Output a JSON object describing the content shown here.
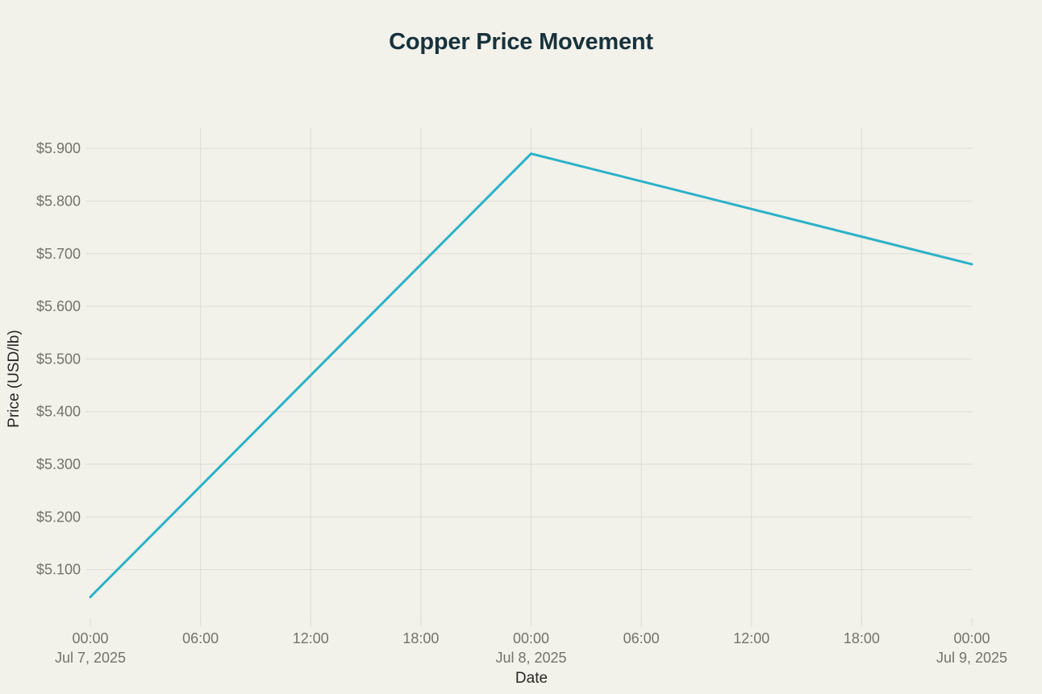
{
  "chart_data": {
    "type": "line",
    "title": "Copper Price Movement",
    "xlabel": "Date",
    "ylabel": "Price (USD/lb)",
    "series": [
      {
        "x_hours": [
          0,
          24,
          48
        ],
        "x_labels": [
          "Jul 7, 2025 00:00",
          "Jul 8, 2025 00:00",
          "Jul 9, 2025 00:00"
        ],
        "values": [
          5.048,
          5.89,
          5.68
        ],
        "color": "#2ab2c8"
      }
    ],
    "x_ticks": [
      {
        "hour": 0,
        "label": "00:00",
        "date": "Jul 7, 2025"
      },
      {
        "hour": 6,
        "label": "06:00"
      },
      {
        "hour": 12,
        "label": "12:00"
      },
      {
        "hour": 18,
        "label": "18:00"
      },
      {
        "hour": 24,
        "label": "00:00",
        "date": "Jul 8, 2025"
      },
      {
        "hour": 30,
        "label": "06:00"
      },
      {
        "hour": 36,
        "label": "12:00"
      },
      {
        "hour": 42,
        "label": "18:00"
      },
      {
        "hour": 48,
        "label": "00:00",
        "date": "Jul 9, 2025"
      }
    ],
    "y_ticks": [
      {
        "value": 5.1,
        "label": "$5.100"
      },
      {
        "value": 5.2,
        "label": "$5.200"
      },
      {
        "value": 5.3,
        "label": "$5.300"
      },
      {
        "value": 5.4,
        "label": "$5.400"
      },
      {
        "value": 5.5,
        "label": "$5.500"
      },
      {
        "value": 5.6,
        "label": "$5.600"
      },
      {
        "value": 5.7,
        "label": "$5.700"
      },
      {
        "value": 5.8,
        "label": "$5.800"
      },
      {
        "value": 5.9,
        "label": "$5.900"
      }
    ],
    "xlim_hours": [
      0,
      48
    ],
    "ylim": [
      5.0,
      5.94
    ],
    "grid": true,
    "legend": false,
    "colors": {
      "line": "#2ab2c8",
      "grid": "#dddcd4",
      "tick_label": "#73736d",
      "title": "#17323c",
      "axis_label": "#272723",
      "background": "#f2f1ea"
    }
  }
}
